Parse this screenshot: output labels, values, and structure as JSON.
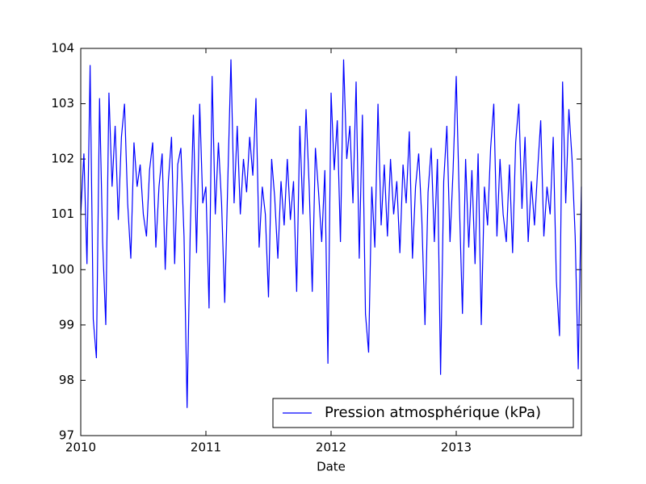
{
  "chart_data": {
    "type": "line",
    "xlabel": "Date",
    "x": [
      2010,
      2010.025,
      2010.05,
      2010.075,
      2010.1,
      2010.125,
      2010.15,
      2010.175,
      2010.2,
      2010.225,
      2010.25,
      2010.275,
      2010.3,
      2010.325,
      2010.35,
      2010.375,
      2010.4,
      2010.425,
      2010.45,
      2010.475,
      2010.5,
      2010.525,
      2010.55,
      2010.575,
      2010.6,
      2010.625,
      2010.65,
      2010.675,
      2010.7,
      2010.725,
      2010.75,
      2010.775,
      2010.8,
      2010.825,
      2010.85,
      2010.875,
      2010.9,
      2010.925,
      2010.95,
      2010.975,
      2011,
      2011.025,
      2011.05,
      2011.075,
      2011.1,
      2011.125,
      2011.15,
      2011.175,
      2011.2,
      2011.225,
      2011.25,
      2011.275,
      2011.3,
      2011.325,
      2011.35,
      2011.375,
      2011.4,
      2011.425,
      2011.45,
      2011.475,
      2011.5,
      2011.525,
      2011.55,
      2011.575,
      2011.6,
      2011.625,
      2011.65,
      2011.675,
      2011.7,
      2011.725,
      2011.75,
      2011.775,
      2011.8,
      2011.825,
      2011.85,
      2011.875,
      2011.9,
      2011.925,
      2011.95,
      2011.975,
      2012,
      2012.025,
      2012.05,
      2012.075,
      2012.1,
      2012.125,
      2012.15,
      2012.175,
      2012.2,
      2012.225,
      2012.25,
      2012.275,
      2012.3,
      2012.325,
      2012.35,
      2012.375,
      2012.4,
      2012.425,
      2012.45,
      2012.475,
      2012.5,
      2012.525,
      2012.55,
      2012.575,
      2012.6,
      2012.625,
      2012.65,
      2012.675,
      2012.7,
      2012.725,
      2012.75,
      2012.775,
      2012.8,
      2012.825,
      2012.85,
      2012.875,
      2012.9,
      2012.925,
      2012.95,
      2012.975,
      2013,
      2013.025,
      2013.05,
      2013.075,
      2013.1,
      2013.125,
      2013.15,
      2013.175,
      2013.2,
      2013.225,
      2013.25,
      2013.275,
      2013.3,
      2013.325,
      2013.35,
      2013.375,
      2013.4,
      2013.425,
      2013.45,
      2013.475,
      2013.5,
      2013.525,
      2013.55,
      2013.575,
      2013.6,
      2013.625,
      2013.65,
      2013.675,
      2013.7,
      2013.725,
      2013.75,
      2013.775,
      2013.8,
      2013.825,
      2013.85,
      2013.875,
      2013.9,
      2013.925,
      2013.95,
      2013.975,
      2014
    ],
    "series": [
      {
        "name": "Pression atmosphérique (kPa)",
        "color": "#0000ff",
        "values": [
          101.0,
          102.1,
          100.1,
          103.7,
          99.1,
          98.4,
          103.1,
          100.5,
          99.0,
          103.2,
          101.5,
          102.6,
          100.9,
          102.4,
          103.0,
          101.2,
          100.2,
          102.3,
          101.5,
          101.9,
          101.0,
          100.6,
          101.8,
          102.3,
          100.4,
          101.5,
          102.1,
          100.0,
          101.6,
          102.4,
          100.1,
          101.9,
          102.2,
          100.6,
          97.5,
          100.7,
          102.8,
          100.3,
          103.0,
          101.2,
          101.5,
          99.3,
          103.5,
          101.0,
          102.3,
          101.2,
          99.4,
          101.6,
          103.8,
          101.2,
          102.6,
          101.0,
          102.0,
          101.4,
          102.4,
          101.7,
          103.1,
          100.4,
          101.5,
          101.0,
          99.5,
          102.0,
          101.3,
          100.2,
          101.6,
          100.8,
          102.0,
          100.9,
          101.6,
          99.6,
          102.6,
          101.0,
          102.9,
          101.5,
          99.6,
          102.2,
          101.4,
          100.5,
          101.8,
          98.3,
          103.2,
          101.8,
          102.7,
          100.5,
          103.8,
          102.0,
          102.6,
          101.2,
          103.4,
          100.2,
          102.8,
          99.2,
          98.5,
          101.5,
          100.4,
          103.0,
          100.8,
          101.9,
          100.6,
          102.0,
          101.0,
          101.6,
          100.3,
          101.9,
          101.2,
          102.5,
          100.2,
          101.5,
          102.1,
          100.9,
          99.0,
          101.4,
          102.2,
          100.5,
          102.0,
          98.1,
          101.6,
          102.6,
          100.5,
          101.8,
          103.5,
          101.2,
          99.2,
          102.0,
          100.4,
          101.8,
          100.1,
          102.1,
          99.0,
          101.5,
          100.8,
          102.2,
          103.0,
          100.6,
          102.0,
          101.0,
          100.5,
          101.9,
          100.3,
          102.3,
          103.0,
          101.1,
          102.4,
          100.5,
          101.6,
          100.8,
          101.8,
          102.7,
          100.6,
          101.5,
          101.0,
          102.4,
          99.8,
          98.8,
          103.4,
          101.2,
          102.9,
          102.0,
          100.6,
          98.2,
          101.5
        ]
      }
    ],
    "xlim": [
      2010,
      2014
    ],
    "xticks": [
      2010,
      2011,
      2012,
      2013
    ],
    "ylim": [
      97,
      104
    ],
    "yticks": [
      97,
      98,
      99,
      100,
      101,
      102,
      103,
      104
    ],
    "legend": "lower right"
  }
}
